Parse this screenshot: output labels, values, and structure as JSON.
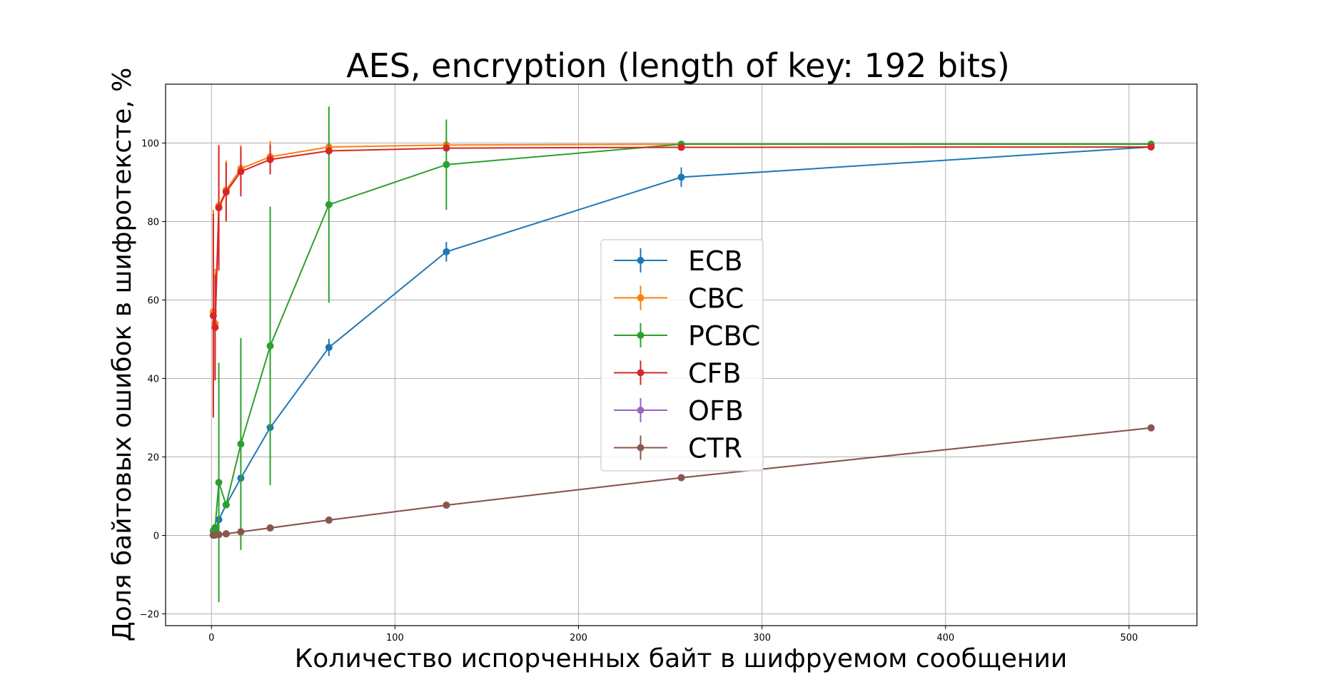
{
  "chart_data": {
    "type": "line",
    "title": "AES, encryption (length of key: 192 bits)",
    "xlabel": "Количество испорченных байт в шифруемом сообщении",
    "ylabel": "Доля байтовых ошибок в шифротексте, %",
    "xlim": [
      -25,
      537
    ],
    "ylim": [
      -23,
      115
    ],
    "xticks": [
      0,
      100,
      200,
      300,
      400,
      500
    ],
    "yticks": [
      -20,
      0,
      20,
      40,
      60,
      80,
      100
    ],
    "xtick_labels": [
      "0",
      "100",
      "200",
      "300",
      "400",
      "500"
    ],
    "ytick_labels": [
      "−20",
      "0",
      "20",
      "40",
      "60",
      "80",
      "100"
    ],
    "grid": true,
    "legend_position": "center",
    "x": [
      1,
      2,
      4,
      8,
      16,
      32,
      64,
      128,
      256,
      512
    ],
    "series": [
      {
        "name": "ECB",
        "color": "#1f77b4",
        "values": [
          0.2,
          1.0,
          4.0,
          7.8,
          14.6,
          27.5,
          47.9,
          72.3,
          91.3,
          99.0
        ],
        "errors": [
          0,
          0,
          0,
          0,
          0,
          0,
          2.2,
          2.5,
          2.5,
          0
        ]
      },
      {
        "name": "CBC",
        "color": "#ff7f0e",
        "values": [
          57.0,
          54.0,
          84.0,
          88.0,
          93.5,
          96.5,
          99.0,
          99.5,
          99.7,
          99.7
        ],
        "errors": [
          26,
          14,
          15,
          7.5,
          6,
          4,
          1,
          0.5,
          0.3,
          0.2
        ]
      },
      {
        "name": "PCBC",
        "color": "#2ca02c",
        "values": [
          1.2,
          2.0,
          13.5,
          7.8,
          23.3,
          48.3,
          84.3,
          94.5,
          99.7,
          99.7
        ],
        "errors": [
          0,
          0,
          30.5,
          0,
          27,
          35.5,
          25,
          11.5,
          0,
          0
        ]
      },
      {
        "name": "CFB",
        "color": "#d62728",
        "values": [
          56.0,
          53.0,
          83.5,
          87.5,
          92.7,
          95.8,
          98.0,
          98.7,
          98.9,
          99.0
        ],
        "errors": [
          26,
          13.5,
          16,
          7.5,
          6.3,
          3.8,
          1,
          0.3,
          0.2,
          0.2
        ]
      },
      {
        "name": "OFB",
        "color": "#9467bd",
        "values": [
          0.05,
          0.1,
          0.2,
          0.4,
          0.9,
          1.9,
          3.9,
          7.7,
          14.7,
          27.4
        ],
        "errors": [
          0,
          0,
          0,
          0,
          0,
          0,
          0,
          0,
          0,
          0
        ]
      },
      {
        "name": "CTR",
        "color": "#8c564b",
        "values": [
          0.05,
          0.1,
          0.2,
          0.4,
          0.9,
          1.9,
          3.9,
          7.7,
          14.7,
          27.4
        ],
        "errors": [
          0,
          0,
          0,
          0,
          0,
          0,
          0,
          0,
          0,
          0
        ]
      }
    ]
  }
}
